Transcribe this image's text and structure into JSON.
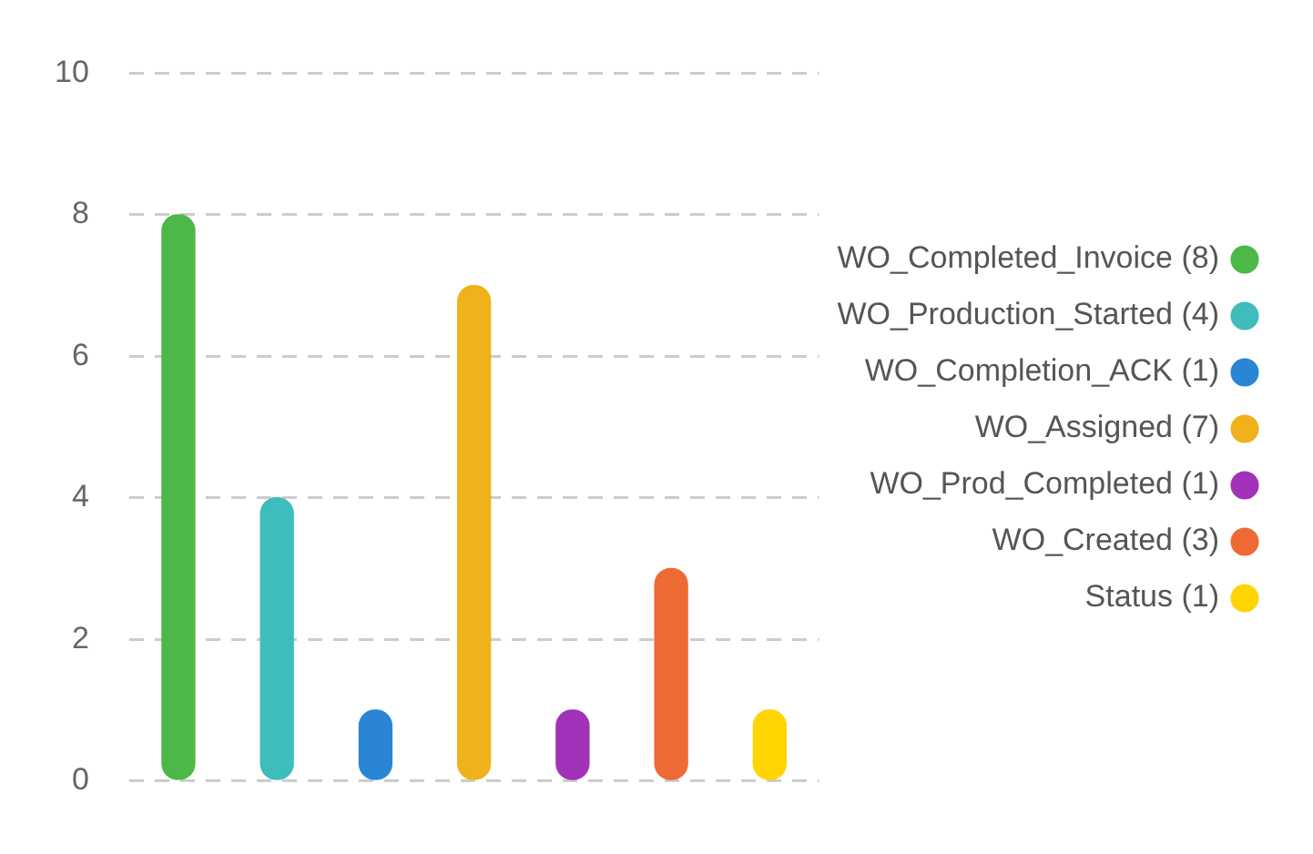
{
  "chart_data": {
    "type": "bar",
    "categories": [
      null,
      null,
      null,
      null,
      null,
      null,
      null
    ],
    "series": [
      {
        "name": "WO_Completed_Invoice (8)",
        "color": "#4cb848",
        "values": [
          8,
          null,
          null,
          null,
          null,
          null,
          null
        ]
      },
      {
        "name": "WO_Production_Started (4)",
        "color": "#3fbcbc",
        "values": [
          null,
          4,
          null,
          null,
          null,
          null,
          null
        ]
      },
      {
        "name": "WO_Completion_ACK (1)",
        "color": "#2a86d4",
        "values": [
          null,
          null,
          1,
          null,
          null,
          null,
          null
        ]
      },
      {
        "name": "WO_Assigned (7)",
        "color": "#f0b21a",
        "values": [
          null,
          null,
          null,
          7,
          null,
          null,
          null
        ]
      },
      {
        "name": "WO_Prod_Completed (1)",
        "color": "#a232b8",
        "values": [
          null,
          null,
          null,
          null,
          1,
          null,
          null
        ]
      },
      {
        "name": "WO_Created (3)",
        "color": "#ee6a34",
        "values": [
          null,
          null,
          null,
          null,
          null,
          3,
          null
        ]
      },
      {
        "name": "Status (1)",
        "color": "#ffd400",
        "values": [
          null,
          null,
          null,
          null,
          null,
          null,
          1
        ]
      }
    ],
    "ylim": [
      0,
      10
    ],
    "yticks": [
      0,
      2,
      4,
      6,
      8,
      10
    ],
    "grid": "y",
    "legend": "right"
  }
}
